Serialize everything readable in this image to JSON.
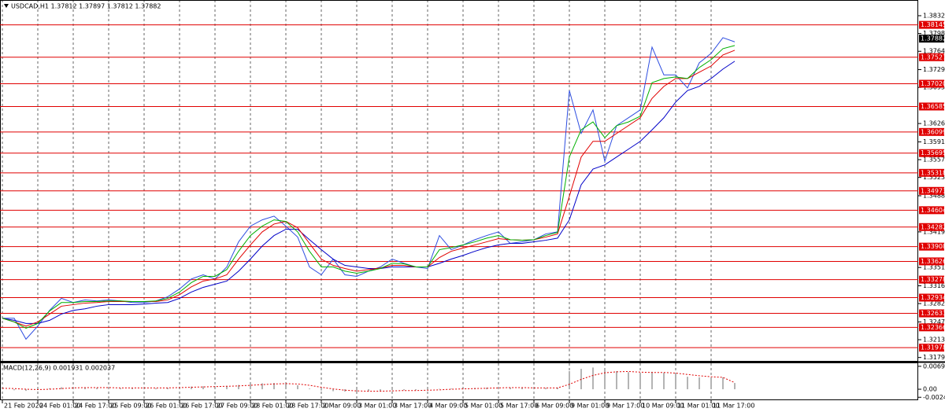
{
  "chart_data": [
    {
      "type": "line",
      "title": "USDCAD,H1  1.37812 1.37897 1.37812 1.37882",
      "categories": [
        "21 Feb 2020",
        null,
        null,
        "24 Feb 01:00",
        null,
        null,
        "24 Feb 17:00",
        null,
        null,
        "25 Feb 09:00",
        null,
        null,
        "26 Feb 01:00",
        null,
        null,
        "26 Feb 17:00",
        null,
        null,
        "27 Feb 09:00",
        null,
        null,
        "28 Feb 01:00",
        null,
        null,
        "28 Feb 17:00",
        null,
        null,
        "2 Mar 09:00",
        null,
        null,
        "3 Mar 01:00",
        null,
        null,
        "3 Mar 17:00",
        null,
        null,
        "4 Mar 09:00",
        null,
        null,
        "5 Mar 01:00",
        null,
        null,
        "5 Mar 17:00",
        null,
        null,
        "6 Mar 09:00",
        null,
        null,
        "9 Mar 01:00",
        null,
        null,
        "9 Mar 17:00",
        null,
        null,
        "10 Mar 09:00",
        null,
        null,
        "11 Mar 01:00",
        null,
        null,
        "11 Mar 17:00",
        null,
        null
      ],
      "series": [
        {
          "color": "#2d4de0",
          "values": [
            1.3254,
            1.3254,
            1.3214,
            1.3239,
            1.3269,
            1.3292,
            1.3284,
            1.3289,
            1.3287,
            1.3289,
            1.3287,
            1.3284,
            1.3284,
            1.3287,
            1.3295,
            1.331,
            1.3329,
            1.3337,
            1.3329,
            1.3352,
            1.34,
            1.343,
            1.3442,
            1.3449,
            1.343,
            1.3409,
            1.3352,
            1.3337,
            1.3367,
            1.3337,
            1.3334,
            1.3344,
            1.3352,
            1.3367,
            1.3359,
            1.3352,
            1.3349,
            1.3412,
            1.3385,
            1.3394,
            1.3404,
            1.3412,
            1.3419,
            1.3397,
            1.34,
            1.3404,
            1.3415,
            1.3419,
            1.3689,
            1.3607,
            1.3652,
            1.3554,
            1.3622,
            1.3637,
            1.3652,
            1.3772,
            1.3719,
            1.3719,
            1.3694,
            1.3742,
            1.376,
            1.379,
            1.3782
          ]
        },
        {
          "color": "#0000c8",
          "values": [
            1.3254,
            1.325,
            1.3244,
            1.3244,
            1.325,
            1.3262,
            1.3269,
            1.3272,
            1.3277,
            1.328,
            1.328,
            1.328,
            1.3281,
            1.3283,
            1.3284,
            1.3292,
            1.3304,
            1.3313,
            1.3319,
            1.3325,
            1.3344,
            1.3367,
            1.3392,
            1.3412,
            1.3424,
            1.3424,
            1.3404,
            1.3385,
            1.3367,
            1.3355,
            1.3352,
            1.3349,
            1.3349,
            1.3352,
            1.3352,
            1.3352,
            1.3352,
            1.3359,
            1.3367,
            1.3374,
            1.3382,
            1.3389,
            1.3394,
            1.3397,
            1.3397,
            1.34,
            1.3403,
            1.3407,
            1.3442,
            1.3509,
            1.3539,
            1.3547,
            1.3562,
            1.3577,
            1.3592,
            1.3614,
            1.3637,
            1.3667,
            1.3689,
            1.3697,
            1.3712,
            1.373,
            1.3745
          ]
        },
        {
          "color": "#e00000",
          "values": [
            1.3254,
            1.3247,
            1.3239,
            1.3247,
            1.3262,
            1.3277,
            1.328,
            1.3283,
            1.3284,
            1.3286,
            1.3286,
            1.3286,
            1.3286,
            1.3286,
            1.3289,
            1.3299,
            1.3314,
            1.3325,
            1.3329,
            1.3337,
            1.3367,
            1.3394,
            1.3419,
            1.3434,
            1.3439,
            1.3427,
            1.3397,
            1.3367,
            1.3355,
            1.3349,
            1.3344,
            1.3347,
            1.335,
            1.3355,
            1.3355,
            1.3352,
            1.3352,
            1.337,
            1.3382,
            1.3388,
            1.3394,
            1.34,
            1.3406,
            1.3404,
            1.3403,
            1.3404,
            1.3409,
            1.3415,
            1.3487,
            1.3562,
            1.3592,
            1.3592,
            1.3607,
            1.3622,
            1.3637,
            1.3674,
            1.3697,
            1.3712,
            1.3712,
            1.3724,
            1.3736,
            1.3757,
            1.3766
          ]
        },
        {
          "color": "#00b000",
          "values": [
            1.3254,
            1.3247,
            1.3235,
            1.3244,
            1.3268,
            1.3284,
            1.3284,
            1.3286,
            1.3286,
            1.3287,
            1.3287,
            1.3286,
            1.3286,
            1.3287,
            1.3292,
            1.3304,
            1.3322,
            1.3334,
            1.3334,
            1.3347,
            1.3382,
            1.3412,
            1.343,
            1.3442,
            1.3439,
            1.3419,
            1.3382,
            1.3352,
            1.3352,
            1.3344,
            1.334,
            1.3344,
            1.3349,
            1.3359,
            1.3358,
            1.3352,
            1.3352,
            1.3385,
            1.3389,
            1.3394,
            1.34,
            1.3407,
            1.3412,
            1.3404,
            1.3403,
            1.3404,
            1.3412,
            1.3418,
            1.3562,
            1.3614,
            1.3629,
            1.3599,
            1.3622,
            1.3629,
            1.364,
            1.3704,
            1.3712,
            1.3715,
            1.3712,
            1.3733,
            1.3748,
            1.3769,
            1.3775
          ]
        }
      ],
      "ylim": [
        1.3171,
        1.3862
      ],
      "yticks": [
        {
          "value": 1.3832,
          "label": "1.38320"
        },
        {
          "value": 1.3798,
          "label": "1.37980"
        },
        {
          "value": 1.3764,
          "label": "1.37640"
        },
        {
          "value": 1.3729,
          "label": "1.37290"
        },
        {
          "value": 1.3695,
          "label": "1.36950"
        },
        {
          "value": 1.3626,
          "label": "1.36260"
        },
        {
          "value": 1.3591,
          "label": "1.35910"
        },
        {
          "value": 1.3557,
          "label": "1.35570"
        },
        {
          "value": 1.3523,
          "label": "1.35230"
        },
        {
          "value": 1.3488,
          "label": "1.34880"
        },
        {
          "value": 1.3419,
          "label": "1.34190"
        },
        {
          "value": 1.3351,
          "label": "1.33510"
        },
        {
          "value": 1.3316,
          "label": "1.33160"
        },
        {
          "value": 1.3282,
          "label": "1.32820"
        },
        {
          "value": 1.3247,
          "label": "1.32470"
        },
        {
          "value": 1.3213,
          "label": "1.32130"
        },
        {
          "value": 1.3179,
          "label": "1.31790"
        }
      ],
      "levels": [
        1.38145,
        1.37527,
        {
          "value": 1.3702,
          "label": "1.37020"
        },
        1.36585,
        1.36099,
        1.35695,
        1.35318,
        1.34973,
        1.34604,
        1.34282,
        1.33908,
        1.33626,
        1.33278,
        1.32934,
        1.32633,
        1.32366,
        1.31978
      ],
      "level_color": "#e00000",
      "last_price": 1.37882,
      "grid": true
    },
    {
      "type": "bar",
      "title": "MACD(12,26,9) 0.001931 0.002037",
      "values": [
        0.0002,
        -0.0003,
        -0.0005,
        -0.0002,
        0.0003,
        0.0006,
        0.0006,
        0.0005,
        0.0004,
        0.0004,
        0.0003,
        0.0003,
        0.0003,
        0.0003,
        0.0004,
        0.0006,
        0.0008,
        0.0009,
        0.0009,
        0.001,
        0.0013,
        0.0016,
        0.0018,
        0.0019,
        0.0017,
        0.0012,
        0.0002,
        -0.0004,
        -0.0006,
        -0.0007,
        -0.0007,
        -0.0006,
        -0.0005,
        -0.0003,
        -0.0003,
        -0.0003,
        -0.0003,
        0.0001,
        0.0002,
        0.0003,
        0.0004,
        0.0005,
        0.0006,
        0.0005,
        0.0004,
        0.0004,
        0.0004,
        0.0005,
        0.0055,
        0.0062,
        0.0066,
        0.0058,
        0.0055,
        0.0052,
        0.0049,
        0.0053,
        0.005,
        0.0045,
        0.0038,
        0.0036,
        0.0035,
        0.0036,
        0.0019
      ],
      "color": "#b4b4b4",
      "signal": {
        "color": "#e00000",
        "values": [
          0.0003,
          0.0002,
          0,
          -0.0001,
          0,
          0.0002,
          0.0004,
          0.0005,
          0.0005,
          0.0005,
          0.0004,
          0.0004,
          0.0004,
          0.0004,
          0.0004,
          0.0005,
          0.0006,
          0.0007,
          0.0008,
          0.0009,
          0.001,
          0.0012,
          0.0014,
          0.0016,
          0.0017,
          0.0016,
          0.0012,
          0.0006,
          0.0001,
          -0.0003,
          -0.0005,
          -0.0006,
          -0.0006,
          -0.0005,
          -0.0004,
          -0.0004,
          -0.0003,
          -0.0002,
          0,
          0.0001,
          0.0002,
          0.0003,
          0.0004,
          0.0005,
          0.0005,
          0.0004,
          0.0004,
          0.0004,
          0.0015,
          0.003,
          0.0042,
          0.005,
          0.0053,
          0.0054,
          0.0052,
          0.0051,
          0.0051,
          0.0049,
          0.0045,
          0.0041,
          0.0038,
          0.0036,
          0.002
        ]
      },
      "ylim": [
        -0.0031,
        0.0079
      ],
      "yticks": [
        0.006972,
        {
          "value": 0,
          "label": "0.00"
        },
        -0.002444
      ]
    }
  ]
}
